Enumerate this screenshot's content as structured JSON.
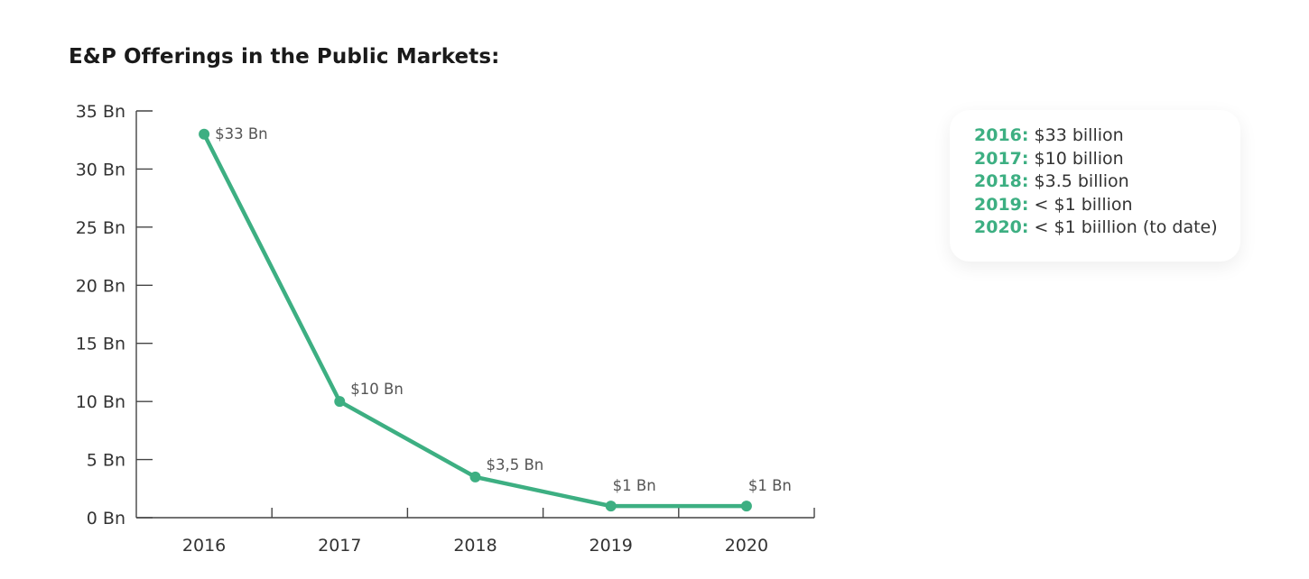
{
  "title": "E&P Offerings in the Public Markets:",
  "colors": {
    "accent": "#3daf82",
    "axis": "#444444",
    "text": "#333333",
    "label": "#555555"
  },
  "chart_data": {
    "type": "line",
    "title": "E&P Offerings in the Public Markets:",
    "xlabel": "",
    "ylabel": "",
    "categories": [
      "2016",
      "2017",
      "2018",
      "2019",
      "2020"
    ],
    "series": [
      {
        "values": [
          33,
          10,
          3.5,
          1,
          1
        ],
        "point_labels": [
          "$33 Bn",
          "$10 Bn",
          "$3,5 Bn",
          "$1 Bn",
          "$1 Bn"
        ]
      }
    ],
    "ylim": [
      0,
      35
    ],
    "yticks": [
      0,
      5,
      10,
      15,
      20,
      25,
      30,
      35
    ],
    "ytick_labels": [
      "0 Bn",
      "5 Bn",
      "10 Bn",
      "15 Bn",
      "20 Bn",
      "25 Bn",
      "30 Bn",
      "35 Bn"
    ],
    "grid": false,
    "legend": "right"
  },
  "legend": {
    "items": [
      {
        "year": "2016:",
        "text": " $33 billion"
      },
      {
        "year": "2017:",
        "text": " $10 billion"
      },
      {
        "year": "2018:",
        "text": " $3.5 billion"
      },
      {
        "year": "2019:",
        "text": " < $1 billion"
      },
      {
        "year": "2020:",
        "text": " < $1 biillion (to date)"
      }
    ]
  }
}
